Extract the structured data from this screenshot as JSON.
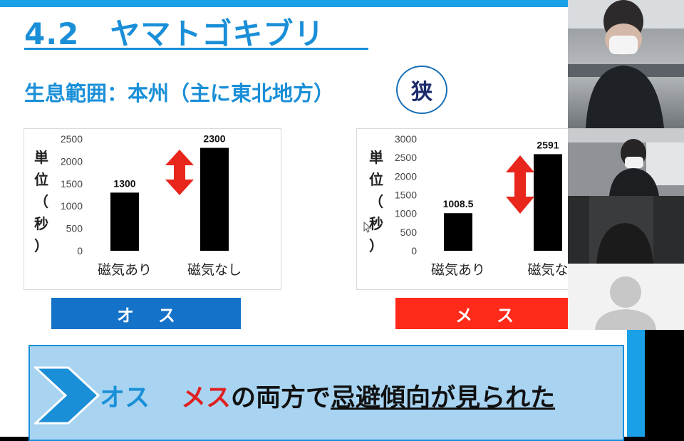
{
  "slide": {
    "title": "4.2　ヤマトゴキブリ",
    "subtitle": "生息範囲：本州（主に東北地方）",
    "badge": "狭",
    "ylabel_chars": [
      "単",
      "位",
      "（",
      "秒",
      "）"
    ],
    "male_label": "オス",
    "female_label": "メス",
    "conclusion": {
      "part_male": "オス",
      "part_female": "メス",
      "part_mid": "の両方で",
      "part_underlined": "忌避傾向",
      "part_end": "が見られた"
    }
  },
  "colors": {
    "accent_blue": "#1a8fd8",
    "male_bar": "#1572c9",
    "female_bar": "#ff2a1a",
    "arrow_red": "#e8261c",
    "bar_fill": "#000000"
  },
  "chart_data": [
    {
      "type": "bar",
      "title": "",
      "ylabel": "単位（秒）",
      "categories": [
        "磁気あり",
        "磁気なし"
      ],
      "values": [
        1300,
        2300
      ],
      "value_labels": [
        "1300",
        "2300"
      ],
      "ylim": [
        0,
        2500
      ],
      "yticks": [
        0,
        500,
        1000,
        1500,
        2000,
        2500
      ],
      "grid": false
    },
    {
      "type": "bar",
      "title": "",
      "ylabel": "単位（秒）",
      "categories": [
        "磁気あり",
        "磁気な"
      ],
      "values": [
        1008.5,
        2591
      ],
      "value_labels": [
        "1008.5",
        "2591"
      ],
      "ylim": [
        0,
        3000
      ],
      "yticks": [
        0,
        500,
        1000,
        1500,
        2000,
        2500,
        3000
      ],
      "grid": false
    }
  ],
  "video_tiles": [
    {
      "icon": "participant-video-icon"
    },
    {
      "icon": "participant-video-icon"
    },
    {
      "icon": "participant-video-icon"
    },
    {
      "icon": "avatar-placeholder-icon"
    }
  ]
}
